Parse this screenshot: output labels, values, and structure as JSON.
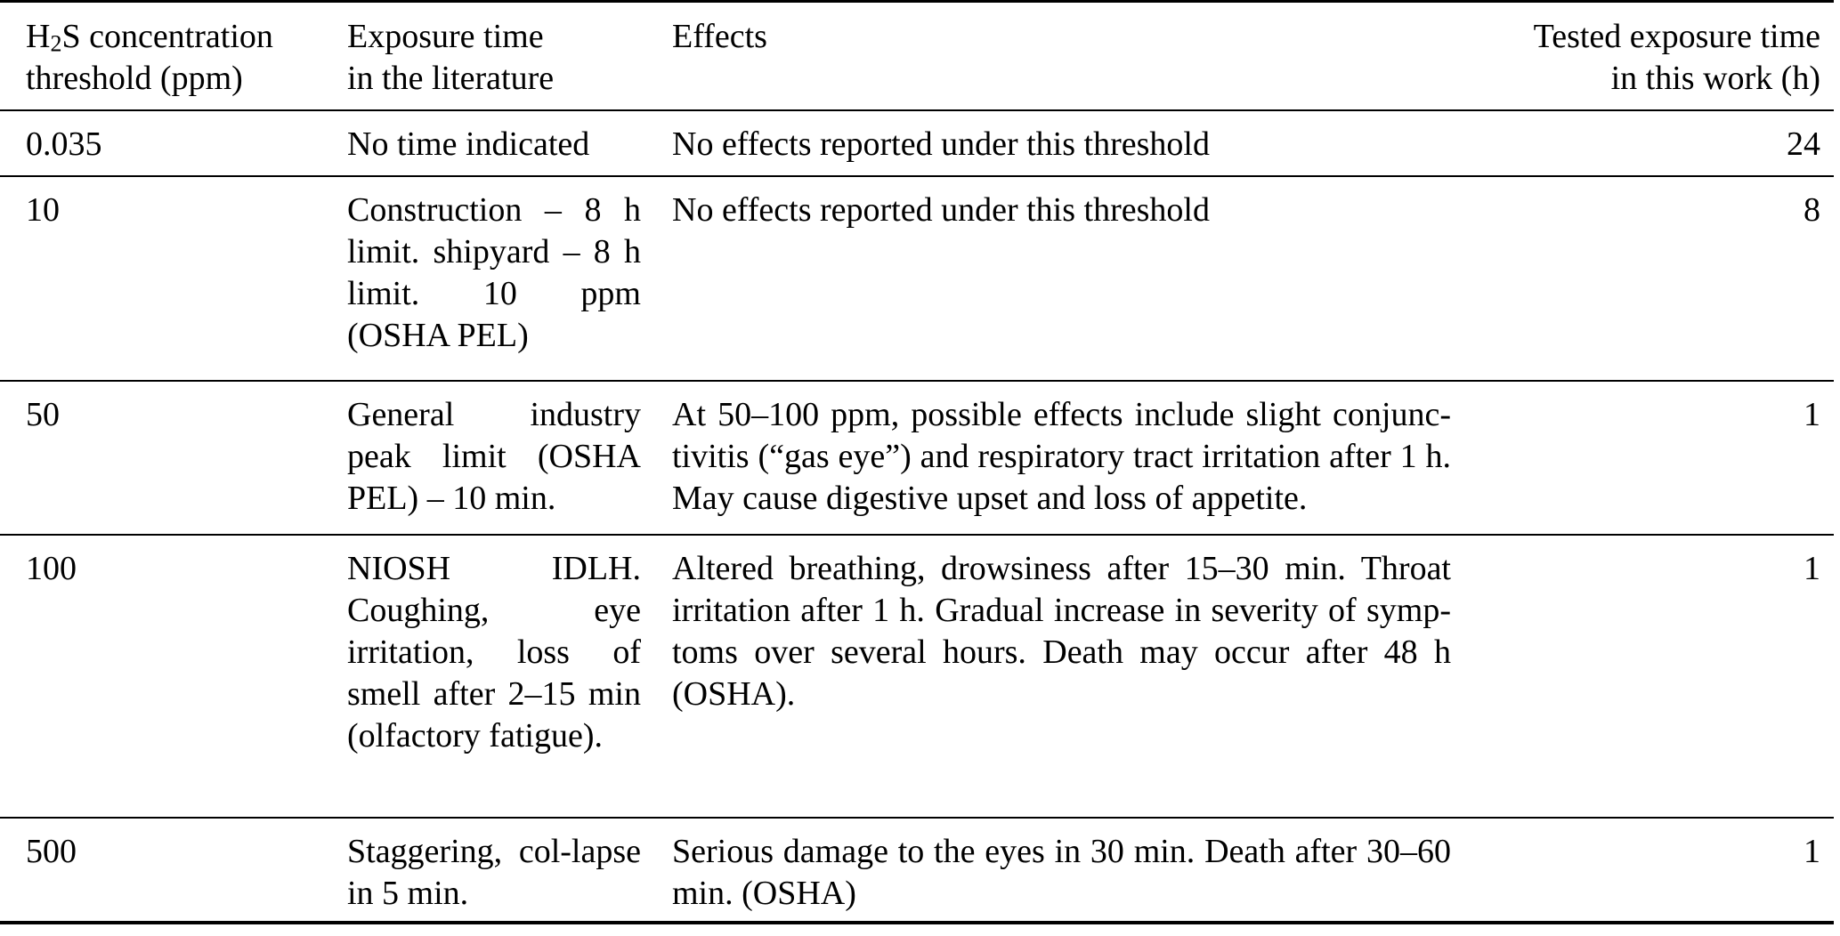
{
  "table": {
    "header": {
      "col1": {
        "line1_prefix": "H",
        "line1_sub": "2",
        "line1_rest": "S concentration",
        "line2": "threshold (ppm)"
      },
      "col2": {
        "line1": "Exposure time",
        "line2": "in the literature"
      },
      "col3": {
        "label": "Effects"
      },
      "col4": {
        "line1": "Tested exposure time",
        "line2": "in this work (h)"
      }
    },
    "rows": [
      {
        "threshold": "0.035",
        "exposure_literature": "No time indicated",
        "effects": "No effects reported under this threshold",
        "tested_time": "24"
      },
      {
        "threshold": "10",
        "exposure_literature": "Construction – 8 h limit. shipyard – 8 h limit. 10 ppm (OSHA PEL)",
        "effects": "No effects reported under this threshold",
        "tested_time": "8"
      },
      {
        "threshold": "50",
        "exposure_literature": "General industry peak limit (OSHA PEL) – 10 min.",
        "effects": "At 50–100 ppm, possible effects include slight conjunc-tivitis (“gas eye”) and respiratory tract irritation after 1 h. May cause digestive upset and loss of appetite.",
        "tested_time": "1"
      },
      {
        "threshold": "100",
        "exposure_literature": "NIOSH IDLH. Coughing, eye irritation, loss of smell after 2–15 min (olfactory fatigue).",
        "effects": "Altered breathing, drowsiness after 15–30 min. Throat irritation after 1 h. Gradual increase in severity of symp-toms over several hours. Death may occur after 48 h (OSHA).",
        "tested_time": "1"
      },
      {
        "threshold": "500",
        "exposure_literature": "Staggering, col-lapse in 5 min.",
        "effects": "Serious damage to the eyes in 30 min. Death after 30–60 min. (OSHA)",
        "tested_time": "1"
      }
    ]
  }
}
